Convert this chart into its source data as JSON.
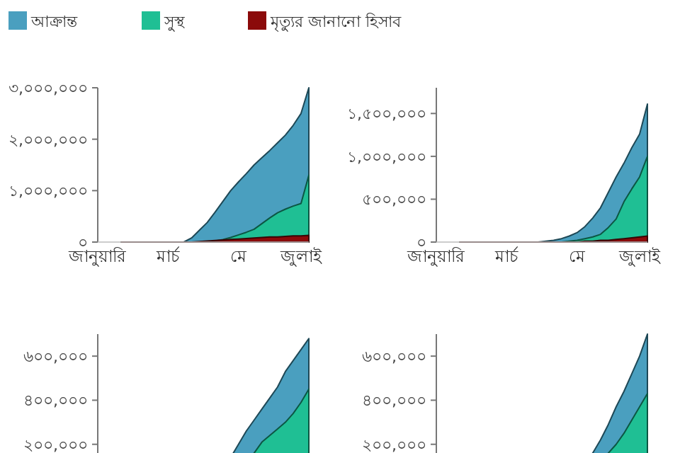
{
  "chart_data": [
    {
      "type": "area",
      "legend": "top",
      "ylim": [
        0,
        3000000
      ],
      "categories": [
        "জানুয়ারি",
        null,
        null,
        null,
        null,
        null,
        null,
        null,
        null,
        "মার্চ",
        null,
        null,
        null,
        null,
        null,
        null,
        null,
        null,
        "মে",
        null,
        null,
        null,
        null,
        null,
        null,
        null,
        "জুলাই",
        null
      ],
      "yticks": [
        {
          "value": 0,
          "label": "০"
        },
        {
          "value": 1000000,
          "label": "১,০০০,০০০"
        },
        {
          "value": 2000000,
          "label": "২,০০০,০০০"
        },
        {
          "value": 3000000,
          "label": "৩,০০০,০০০"
        }
      ],
      "series": [
        {
          "name": "আক্রান্ত",
          "color": "#4a9fbf",
          "values": [
            null,
            null,
            null,
            0,
            0,
            0,
            0,
            0,
            0,
            0,
            0,
            0,
            80000,
            230000,
            380000,
            580000,
            790000,
            1000000,
            1170000,
            1330000,
            1500000,
            1640000,
            1780000,
            1930000,
            2080000,
            2270000,
            2500000,
            3000000
          ]
        },
        {
          "name": "সুস্থ",
          "color": "#1fbf94",
          "values": [
            null,
            null,
            null,
            0,
            0,
            0,
            0,
            0,
            0,
            0,
            0,
            0,
            0,
            0,
            0,
            20000,
            50000,
            90000,
            140000,
            190000,
            250000,
            360000,
            470000,
            570000,
            640000,
            700000,
            750000,
            1300000
          ]
        },
        {
          "name": "মৃত্যুর জানানো হিসাব",
          "color": "#8b0a0a",
          "values": [
            null,
            null,
            null,
            0,
            0,
            0,
            0,
            0,
            0,
            0,
            0,
            0,
            0,
            10000,
            20000,
            30000,
            40000,
            50000,
            60000,
            70000,
            80000,
            90000,
            100000,
            100000,
            110000,
            120000,
            120000,
            130000
          ]
        }
      ]
    },
    {
      "type": "area",
      "ylim": [
        0,
        1800000
      ],
      "categories": [
        "জানুয়ারি",
        null,
        null,
        null,
        null,
        null,
        null,
        null,
        null,
        "মার্চ",
        null,
        null,
        null,
        null,
        null,
        null,
        null,
        null,
        "মে",
        null,
        null,
        null,
        null,
        null,
        null,
        null,
        "জুলাই",
        null
      ],
      "yticks": [
        {
          "value": 0,
          "label": "০"
        },
        {
          "value": 500000,
          "label": "৫০০,০০০"
        },
        {
          "value": 1000000,
          "label": "১,০০০,০০০"
        },
        {
          "value": 1500000,
          "label": "১,৫০০,০০০"
        }
      ],
      "series": [
        {
          "color": "#4a9fbf",
          "values": [
            null,
            null,
            null,
            0,
            0,
            0,
            0,
            0,
            0,
            0,
            0,
            0,
            0,
            0,
            10000,
            20000,
            40000,
            70000,
            110000,
            180000,
            280000,
            400000,
            580000,
            760000,
            920000,
            1100000,
            1260000,
            1610000
          ]
        },
        {
          "color": "#1fbf94",
          "values": [
            null,
            null,
            null,
            0,
            0,
            0,
            0,
            0,
            0,
            0,
            0,
            0,
            0,
            0,
            0,
            0,
            0,
            10000,
            20000,
            40000,
            60000,
            90000,
            170000,
            270000,
            470000,
            620000,
            760000,
            1000000
          ]
        },
        {
          "color": "#8b0a0a",
          "values": [
            null,
            null,
            null,
            0,
            0,
            0,
            0,
            0,
            0,
            0,
            0,
            0,
            0,
            0,
            0,
            0,
            0,
            0,
            0,
            10000,
            10000,
            20000,
            20000,
            30000,
            40000,
            50000,
            60000,
            70000
          ]
        }
      ]
    },
    {
      "type": "area",
      "tick_labels": "y",
      "ylim": [
        0,
        700000
      ],
      "categories": [
        null,
        null,
        null,
        null,
        null,
        null,
        null,
        null,
        null,
        null,
        null,
        null,
        null,
        null,
        null,
        null,
        null,
        null,
        null,
        null,
        null,
        null,
        null,
        null,
        null,
        null,
        null,
        null
      ],
      "yticks": [
        {
          "value": 200000,
          "label": "২০০,০০০"
        },
        {
          "value": 400000,
          "label": "৪০০,০০০"
        },
        {
          "value": 600000,
          "label": "৬০০,০০০"
        }
      ],
      "series": [
        {
          "color": "#4a9fbf",
          "values": [
            null,
            null,
            null,
            0,
            0,
            0,
            0,
            0,
            0,
            0,
            0,
            0,
            0,
            0,
            20000,
            50000,
            80000,
            140000,
            200000,
            260000,
            310000,
            360000,
            410000,
            460000,
            530000,
            580000,
            630000,
            680000
          ]
        },
        {
          "color": "#1fbf94",
          "values": [
            null,
            null,
            null,
            0,
            0,
            0,
            0,
            0,
            0,
            0,
            0,
            0,
            0,
            0,
            0,
            0,
            20000,
            40000,
            60000,
            110000,
            160000,
            210000,
            240000,
            270000,
            300000,
            340000,
            390000,
            450000
          ]
        }
      ]
    },
    {
      "type": "area",
      "tick_labels": "y",
      "ylim": [
        0,
        700000
      ],
      "categories": [
        null,
        null,
        null,
        null,
        null,
        null,
        null,
        null,
        null,
        null,
        null,
        null,
        null,
        null,
        null,
        null,
        null,
        null,
        null,
        null,
        null,
        null,
        null,
        null,
        null,
        null,
        null,
        null
      ],
      "yticks": [
        {
          "value": 200000,
          "label": "২০০,০০০"
        },
        {
          "value": 400000,
          "label": "৪০০,০০০"
        },
        {
          "value": 600000,
          "label": "৬০০,০০০"
        }
      ],
      "series": [
        {
          "color": "#4a9fbf",
          "values": [
            null,
            null,
            null,
            0,
            0,
            0,
            0,
            0,
            0,
            0,
            0,
            0,
            0,
            0,
            0,
            10000,
            30000,
            50000,
            80000,
            120000,
            160000,
            220000,
            290000,
            370000,
            440000,
            520000,
            600000,
            700000
          ]
        },
        {
          "color": "#1fbf94",
          "values": [
            null,
            null,
            null,
            0,
            0,
            0,
            0,
            0,
            0,
            0,
            0,
            0,
            0,
            0,
            0,
            0,
            10000,
            30000,
            50000,
            70000,
            90000,
            120000,
            160000,
            200000,
            250000,
            310000,
            370000,
            430000
          ]
        }
      ]
    }
  ]
}
